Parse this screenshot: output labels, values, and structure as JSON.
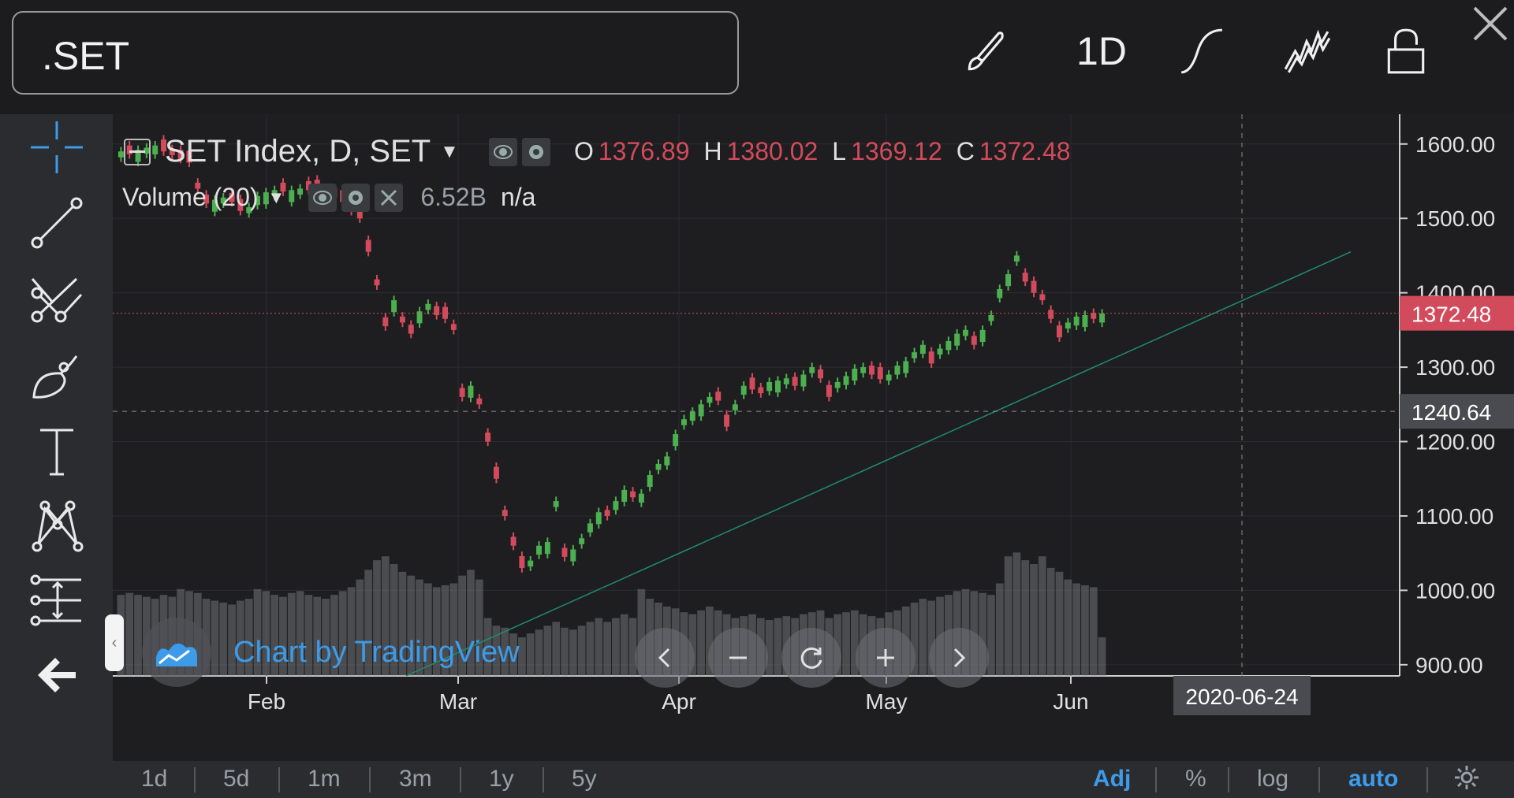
{
  "header": {
    "symbol": ".SET",
    "interval": "1D",
    "icons": [
      "brush-icon",
      "interval",
      "curve-icon",
      "indicators-icon",
      "lock-icon"
    ],
    "close_icon": "close-icon"
  },
  "left_toolbar": {
    "tools": [
      "crosshair-icon",
      "trend-line-icon",
      "pitchfork-icon",
      "brush-tool-icon",
      "text-icon",
      "pattern-icon",
      "measure-icon",
      "back-arrow-icon"
    ]
  },
  "legend": {
    "title": "SET Index, D, SET",
    "o_label": "O",
    "o_value": "1376.89",
    "h_label": "H",
    "h_value": "1380.02",
    "l_label": "L",
    "l_value": "1369.12",
    "c_label": "C",
    "c_value": "1372.48",
    "volume_title": "Volume (20)",
    "volume_value": "6.52B",
    "volume_ma": "n/a"
  },
  "watermark": "Chart by TradingView",
  "chart_data": {
    "type": "candlestick",
    "title": "SET Index, D, SET",
    "y_ticks": [
      "1600.00",
      "1500.00",
      "1400.00",
      "1300.00",
      "1200.00",
      "1100.00",
      "1000.00",
      "900.00"
    ],
    "ylim": [
      885,
      1640
    ],
    "x_ticks": [
      "Feb",
      "Mar",
      "Apr",
      "May",
      "Jun"
    ],
    "last_price_label": "1372.48",
    "crosshair_price_label": "1240.64",
    "crosshair_date_label": "2020-06-24",
    "candles_close": [
      1590,
      1586,
      1592,
      1595,
      1598,
      1590,
      1585,
      1580,
      1575,
      1540,
      1520,
      1525,
      1528,
      1522,
      1510,
      1515,
      1530,
      1535,
      1538,
      1536,
      1538,
      1540,
      1538,
      1536,
      1532,
      1528,
      1522,
      1510,
      1500,
      1455,
      1410,
      1355,
      1390,
      1360,
      1345,
      1375,
      1385,
      1370,
      1365,
      1350,
      1260,
      1275,
      1250,
      1200,
      1150,
      1100,
      1060,
      1030,
      1040,
      1060,
      1065,
      1120,
      1045,
      1055,
      1070,
      1090,
      1105,
      1100,
      1120,
      1135,
      1125,
      1130,
      1155,
      1170,
      1180,
      1210,
      1230,
      1240,
      1250,
      1260,
      1255,
      1220,
      1250,
      1275,
      1270,
      1265,
      1280,
      1282,
      1285,
      1275,
      1290,
      1300,
      1285,
      1260,
      1280,
      1288,
      1298,
      1300,
      1290,
      1284,
      1290,
      1302,
      1308,
      1320,
      1330,
      1305,
      1325,
      1335,
      1345,
      1350,
      1330,
      1350,
      1370,
      1405,
      1425,
      1450,
      1415,
      1400,
      1390,
      1365,
      1340,
      1360,
      1368,
      1370,
      1365,
      1372
    ],
    "candles_up": [
      true,
      false,
      true,
      true,
      true,
      false,
      false,
      false,
      false,
      false,
      false,
      true,
      true,
      false,
      false,
      true,
      true,
      true,
      true,
      false,
      true,
      true,
      false,
      false,
      false,
      false,
      false,
      false,
      false,
      false,
      false,
      false,
      true,
      false,
      false,
      true,
      true,
      false,
      false,
      false,
      false,
      true,
      false,
      false,
      false,
      false,
      false,
      false,
      true,
      true,
      true,
      true,
      false,
      true,
      true,
      true,
      true,
      false,
      true,
      true,
      false,
      true,
      true,
      true,
      true,
      true,
      true,
      true,
      true,
      true,
      false,
      false,
      true,
      true,
      false,
      false,
      true,
      true,
      true,
      false,
      true,
      true,
      false,
      false,
      true,
      true,
      true,
      true,
      false,
      false,
      true,
      true,
      true,
      true,
      true,
      false,
      true,
      true,
      true,
      true,
      false,
      true,
      true,
      true,
      true,
      true,
      false,
      false,
      false,
      false,
      false,
      true,
      true,
      true,
      false,
      true
    ],
    "volume": [
      0.42,
      0.43,
      0.42,
      0.41,
      0.4,
      0.42,
      0.41,
      0.45,
      0.44,
      0.43,
      0.4,
      0.39,
      0.38,
      0.37,
      0.39,
      0.4,
      0.45,
      0.44,
      0.42,
      0.41,
      0.43,
      0.44,
      0.42,
      0.41,
      0.4,
      0.42,
      0.44,
      0.46,
      0.5,
      0.55,
      0.6,
      0.62,
      0.58,
      0.54,
      0.52,
      0.5,
      0.48,
      0.46,
      0.47,
      0.48,
      0.52,
      0.55,
      0.5,
      0.3,
      0.26,
      0.25,
      0.22,
      0.2,
      0.22,
      0.24,
      0.26,
      0.28,
      0.25,
      0.24,
      0.26,
      0.28,
      0.3,
      0.28,
      0.3,
      0.32,
      0.3,
      0.45,
      0.4,
      0.38,
      0.36,
      0.35,
      0.33,
      0.32,
      0.34,
      0.36,
      0.34,
      0.32,
      0.3,
      0.31,
      0.32,
      0.3,
      0.29,
      0.3,
      0.31,
      0.3,
      0.32,
      0.33,
      0.34,
      0.3,
      0.32,
      0.33,
      0.34,
      0.32,
      0.31,
      0.3,
      0.33,
      0.34,
      0.36,
      0.38,
      0.4,
      0.39,
      0.41,
      0.42,
      0.44,
      0.45,
      0.44,
      0.43,
      0.42,
      0.48,
      0.62,
      0.64,
      0.6,
      0.58,
      0.62,
      0.56,
      0.54,
      0.5,
      0.48,
      0.47,
      0.46,
      0.2
    ]
  },
  "bottom_bar": {
    "ranges": [
      "1d",
      "5d",
      "1m",
      "3m",
      "1y",
      "5y"
    ],
    "adj": "Adj",
    "percent": "%",
    "log": "log",
    "auto": "auto"
  },
  "colors": {
    "up": "#4caf50",
    "down": "#d24b5c",
    "accent": "#3d9be9",
    "last_price_bg": "#d24b5c",
    "trend_line": "#1e8c6e"
  }
}
